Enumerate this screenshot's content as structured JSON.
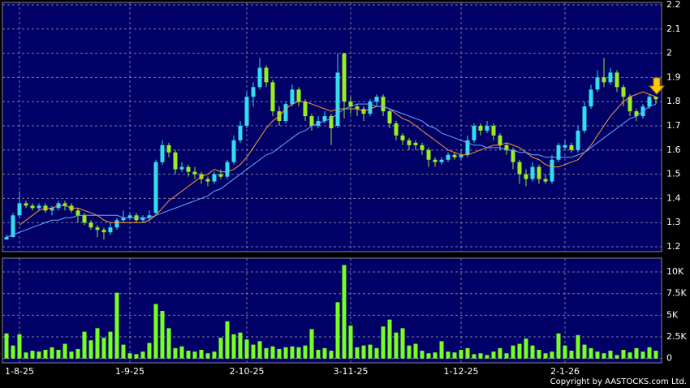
{
  "chart_data": [
    {
      "type": "candlestick",
      "categories": [
        null,
        null,
        "1-8-25",
        null,
        null,
        null,
        null,
        null,
        null,
        null,
        null,
        null,
        null,
        null,
        null,
        null,
        null,
        null,
        null,
        "1-9-25",
        null,
        null,
        null,
        null,
        null,
        null,
        null,
        null,
        null,
        null,
        null,
        null,
        null,
        null,
        null,
        null,
        null,
        "2-10-25",
        null,
        null,
        null,
        null,
        null,
        null,
        null,
        null,
        null,
        null,
        null,
        null,
        null,
        null,
        null,
        "3-11-25",
        null,
        null,
        null,
        null,
        null,
        null,
        null,
        null,
        null,
        null,
        null,
        null,
        null,
        null,
        null,
        null,
        "1-12-25",
        null,
        null,
        null,
        null,
        null,
        null,
        null,
        null,
        null,
        null,
        null,
        null,
        null,
        null,
        null,
        "2-1-26",
        null,
        null,
        null,
        null,
        null,
        null,
        null,
        null,
        null,
        null,
        null,
        null,
        null,
        null
      ],
      "open": [
        1.23,
        1.24,
        1.33,
        1.38,
        1.37,
        1.36,
        1.37,
        1.35,
        1.36,
        1.38,
        1.37,
        1.35,
        1.33,
        1.3,
        1.28,
        1.27,
        1.26,
        1.28,
        1.31,
        1.32,
        1.33,
        1.31,
        1.32,
        1.34,
        1.55,
        1.62,
        1.59,
        1.52,
        1.53,
        1.51,
        1.5,
        1.48,
        1.47,
        1.5,
        1.49,
        1.55,
        1.64,
        1.7,
        1.82,
        1.86,
        1.94,
        1.88,
        1.76,
        1.72,
        1.79,
        1.85,
        1.8,
        1.74,
        1.7,
        1.72,
        1.74,
        1.7,
        2.0,
        1.8,
        1.78,
        1.77,
        1.75,
        1.8,
        1.82,
        1.76,
        1.71,
        1.66,
        1.64,
        1.63,
        1.62,
        1.6,
        1.56,
        1.55,
        1.56,
        1.58,
        1.57,
        1.58,
        1.64,
        1.7,
        1.68,
        1.7,
        1.66,
        1.62,
        1.6,
        1.55,
        1.5,
        1.48,
        1.53,
        1.48,
        1.47,
        1.56,
        1.61,
        1.62,
        1.6,
        1.68,
        1.78,
        1.85,
        1.9,
        1.88,
        1.92,
        1.86,
        1.82,
        1.76,
        1.74,
        1.78,
        1.82
      ],
      "high": [
        1.25,
        1.34,
        1.43,
        1.39,
        1.38,
        1.38,
        1.38,
        1.37,
        1.39,
        1.39,
        1.38,
        1.36,
        1.34,
        1.31,
        1.29,
        1.28,
        1.3,
        1.32,
        1.35,
        1.34,
        1.34,
        1.33,
        1.35,
        1.56,
        1.64,
        1.63,
        1.6,
        1.55,
        1.54,
        1.53,
        1.51,
        1.49,
        1.51,
        1.52,
        1.56,
        1.66,
        1.72,
        1.84,
        1.88,
        1.98,
        1.95,
        1.89,
        1.78,
        1.8,
        1.87,
        1.86,
        1.81,
        1.75,
        1.74,
        1.76,
        1.75,
        2.0,
        2.0,
        1.82,
        1.79,
        1.78,
        1.81,
        1.83,
        1.83,
        1.77,
        1.72,
        1.67,
        1.65,
        1.64,
        1.63,
        1.61,
        1.57,
        1.57,
        1.59,
        1.59,
        1.6,
        1.66,
        1.71,
        1.71,
        1.72,
        1.71,
        1.67,
        1.63,
        1.61,
        1.56,
        1.52,
        1.55,
        1.54,
        1.5,
        1.58,
        1.63,
        1.64,
        1.63,
        1.7,
        1.8,
        1.87,
        1.93,
        1.98,
        1.94,
        1.93,
        1.87,
        1.83,
        1.77,
        1.79,
        1.83,
        1.82
      ],
      "low": [
        1.23,
        1.24,
        1.32,
        1.36,
        1.35,
        1.35,
        1.34,
        1.33,
        1.35,
        1.35,
        1.34,
        1.3,
        1.29,
        1.27,
        1.24,
        1.23,
        1.25,
        1.27,
        1.3,
        1.31,
        1.3,
        1.3,
        1.31,
        1.33,
        1.54,
        1.57,
        1.5,
        1.51,
        1.49,
        1.48,
        1.46,
        1.45,
        1.46,
        1.48,
        1.48,
        1.54,
        1.63,
        1.69,
        1.78,
        1.85,
        1.86,
        1.74,
        1.7,
        1.71,
        1.78,
        1.78,
        1.72,
        1.68,
        1.69,
        1.71,
        1.62,
        1.69,
        1.73,
        1.75,
        1.74,
        1.72,
        1.74,
        1.78,
        1.74,
        1.69,
        1.64,
        1.62,
        1.6,
        1.6,
        1.58,
        1.53,
        1.53,
        1.54,
        1.55,
        1.56,
        1.56,
        1.57,
        1.63,
        1.66,
        1.67,
        1.64,
        1.6,
        1.58,
        1.52,
        1.46,
        1.45,
        1.47,
        1.46,
        1.46,
        1.46,
        1.55,
        1.6,
        1.59,
        1.59,
        1.67,
        1.77,
        1.84,
        1.86,
        1.87,
        1.84,
        1.78,
        1.74,
        1.72,
        1.73,
        1.77,
        1.79
      ],
      "close": [
        1.24,
        1.33,
        1.38,
        1.37,
        1.36,
        1.37,
        1.35,
        1.36,
        1.38,
        1.37,
        1.35,
        1.33,
        1.3,
        1.28,
        1.27,
        1.26,
        1.28,
        1.31,
        1.32,
        1.33,
        1.31,
        1.32,
        1.33,
        1.55,
        1.62,
        1.59,
        1.52,
        1.53,
        1.51,
        1.5,
        1.48,
        1.47,
        1.5,
        1.49,
        1.55,
        1.64,
        1.7,
        1.82,
        1.86,
        1.94,
        1.88,
        1.76,
        1.72,
        1.79,
        1.85,
        1.8,
        1.74,
        1.7,
        1.72,
        1.74,
        1.69,
        1.92,
        1.8,
        1.78,
        1.77,
        1.75,
        1.8,
        1.82,
        1.76,
        1.71,
        1.66,
        1.64,
        1.62,
        1.62,
        1.6,
        1.56,
        1.55,
        1.56,
        1.58,
        1.57,
        1.58,
        1.64,
        1.7,
        1.68,
        1.7,
        1.66,
        1.62,
        1.6,
        1.55,
        1.5,
        1.48,
        1.53,
        1.48,
        1.47,
        1.56,
        1.62,
        1.62,
        1.6,
        1.68,
        1.78,
        1.85,
        1.9,
        1.88,
        1.92,
        1.86,
        1.82,
        1.76,
        1.74,
        1.78,
        1.82,
        1.81
      ],
      "up_color": "#33ddee",
      "down_color": "#99ee22",
      "series": [
        {
          "color": "#ff9933",
          "values": [
            null,
            null,
            1.29,
            1.31,
            1.33,
            1.35,
            1.36,
            1.36,
            1.37,
            1.37,
            1.36,
            1.36,
            1.35,
            1.34,
            1.33,
            1.31,
            1.3,
            1.3,
            1.3,
            1.3,
            1.3,
            1.3,
            1.31,
            1.33,
            1.36,
            1.39,
            1.41,
            1.43,
            1.45,
            1.47,
            1.49,
            1.5,
            1.52,
            1.51,
            1.51,
            1.52,
            1.54,
            1.57,
            1.61,
            1.65,
            1.69,
            1.72,
            1.74,
            1.77,
            1.79,
            1.8,
            1.8,
            1.79,
            1.78,
            1.77,
            1.76,
            1.77,
            1.77,
            1.77,
            1.77,
            1.76,
            1.77,
            1.78,
            1.78,
            1.77,
            1.75,
            1.73,
            1.72,
            1.7,
            1.68,
            1.66,
            1.64,
            1.62,
            1.6,
            1.59,
            1.58,
            1.58,
            1.59,
            1.6,
            1.61,
            1.62,
            1.62,
            1.63,
            1.62,
            1.61,
            1.59,
            1.57,
            1.56,
            1.54,
            1.53,
            1.53,
            1.54,
            1.55,
            1.56,
            1.59,
            1.62,
            1.66,
            1.7,
            1.74,
            1.77,
            1.8,
            1.82,
            1.83,
            1.84,
            1.83,
            1.82
          ]
        },
        {
          "color": "#66aaff",
          "values": [
            1.24,
            1.25,
            1.26,
            1.27,
            1.28,
            1.29,
            1.3,
            1.31,
            1.31,
            1.32,
            1.32,
            1.33,
            1.33,
            1.33,
            1.33,
            1.33,
            1.33,
            1.33,
            1.32,
            1.32,
            1.32,
            1.32,
            1.32,
            1.33,
            1.34,
            1.35,
            1.36,
            1.37,
            1.38,
            1.39,
            1.4,
            1.41,
            1.43,
            1.44,
            1.46,
            1.48,
            1.5,
            1.52,
            1.54,
            1.56,
            1.58,
            1.59,
            1.61,
            1.63,
            1.65,
            1.67,
            1.68,
            1.7,
            1.71,
            1.72,
            1.73,
            1.75,
            1.77,
            1.78,
            1.79,
            1.79,
            1.79,
            1.78,
            1.78,
            1.77,
            1.76,
            1.75,
            1.74,
            1.73,
            1.72,
            1.7,
            1.69,
            1.67,
            1.66,
            1.65,
            1.64,
            1.63,
            1.62,
            1.62,
            1.61,
            1.61,
            1.61,
            1.6,
            1.6,
            1.59,
            1.59,
            1.58,
            1.58,
            1.57,
            1.57,
            1.57,
            1.57,
            1.57,
            1.58,
            1.59,
            1.61,
            1.63,
            1.65,
            1.67,
            1.69,
            1.71,
            1.73,
            1.74,
            1.76,
            1.78,
            1.79
          ]
        }
      ],
      "ylim": [
        1.18,
        2.21
      ],
      "yticks": [
        1.2,
        1.3,
        1.4,
        1.5,
        1.6,
        1.7,
        1.8,
        1.9,
        2,
        2.1,
        2.2
      ],
      "grid": true
    },
    {
      "type": "bar",
      "color": "#77ff22",
      "values": [
        2900,
        1500,
        2800,
        700,
        900,
        800,
        1000,
        1300,
        1000,
        1700,
        800,
        1100,
        3100,
        2100,
        3500,
        2400,
        3100,
        7600,
        1600,
        600,
        500,
        800,
        1800,
        6300,
        5500,
        3500,
        1200,
        1400,
        900,
        800,
        1000,
        600,
        800,
        2400,
        4300,
        2800,
        3000,
        2200,
        1600,
        2000,
        1200,
        1400,
        1100,
        1300,
        1400,
        1300,
        1500,
        3400,
        1000,
        1200,
        900,
        6500,
        10800,
        3800,
        1300,
        1500,
        1600,
        1200,
        3700,
        4500,
        3000,
        3500,
        1500,
        1700,
        900,
        600,
        700,
        2000,
        800,
        700,
        1000,
        1200,
        500,
        600,
        400,
        800,
        1200,
        600,
        1500,
        1700,
        2300,
        1500,
        1000,
        600,
        800,
        2900,
        1500,
        900,
        2700,
        1600,
        1200,
        800,
        600,
        900,
        400,
        1000,
        700,
        1200,
        800,
        1300,
        900
      ],
      "ylim": [
        -500,
        11600
      ],
      "yticks": [
        0,
        {
          "value": 2500,
          "label": "2.5K"
        },
        {
          "value": 5000,
          "label": "5K"
        },
        {
          "value": 7500,
          "label": "7.5K"
        },
        {
          "value": 10000,
          "label": "10K"
        }
      ],
      "grid": true
    }
  ],
  "footer": "Copyright by AASTOCKS.com Ltd."
}
